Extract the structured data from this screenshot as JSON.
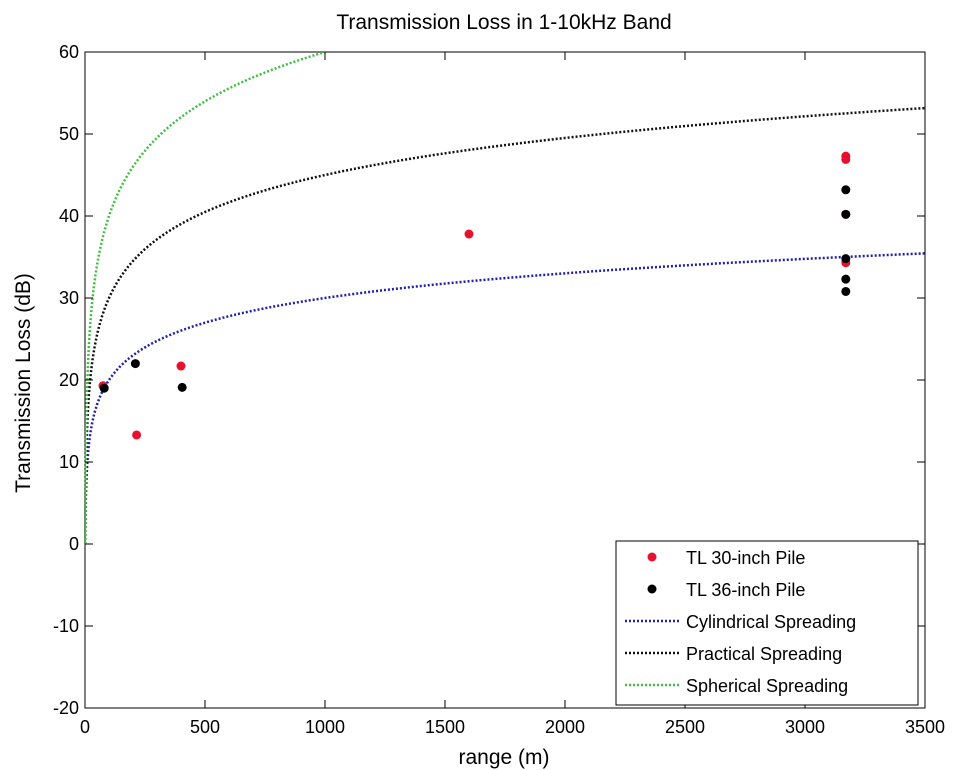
{
  "chart_data": {
    "type": "scatter",
    "title": "Transmission Loss in 1-10kHz Band",
    "xlabel": "range (m)",
    "ylabel": "Transmission Loss (dB)",
    "xlim": [
      0,
      3500
    ],
    "ylim": [
      -20,
      60
    ],
    "xticks": [
      0,
      500,
      1000,
      1500,
      2000,
      2500,
      3000,
      3500
    ],
    "yticks": [
      -20,
      -10,
      0,
      10,
      20,
      30,
      40,
      50,
      60
    ],
    "grid": false,
    "legend_position": "bottom-right",
    "series": [
      {
        "name": "TL 30-inch Pile",
        "kind": "points",
        "color": "#e8112d",
        "points": [
          [
            75,
            19.3
          ],
          [
            215,
            13.3
          ],
          [
            400,
            21.7
          ],
          [
            1600,
            37.8
          ],
          [
            3170,
            47.3
          ],
          [
            3170,
            46.9
          ],
          [
            3170,
            40.2
          ],
          [
            3170,
            34.3
          ]
        ]
      },
      {
        "name": "TL 36-inch Pile",
        "kind": "points",
        "color": "#000000",
        "points": [
          [
            80,
            19.0
          ],
          [
            210,
            22.0
          ],
          [
            405,
            19.1
          ],
          [
            3170,
            43.2
          ],
          [
            3170,
            40.2
          ],
          [
            3170,
            34.8
          ],
          [
            3170,
            32.3
          ],
          [
            3170,
            30.8
          ]
        ]
      },
      {
        "name": "Cylindrical Spreading",
        "kind": "curve",
        "color": "#1f1fb4",
        "coefficient": 10
      },
      {
        "name": "Practical Spreading",
        "kind": "curve",
        "color": "#111111",
        "coefficient": 15
      },
      {
        "name": "Spherical Spreading",
        "kind": "curve",
        "color": "#3fbf3f",
        "coefficient": 20
      }
    ]
  }
}
